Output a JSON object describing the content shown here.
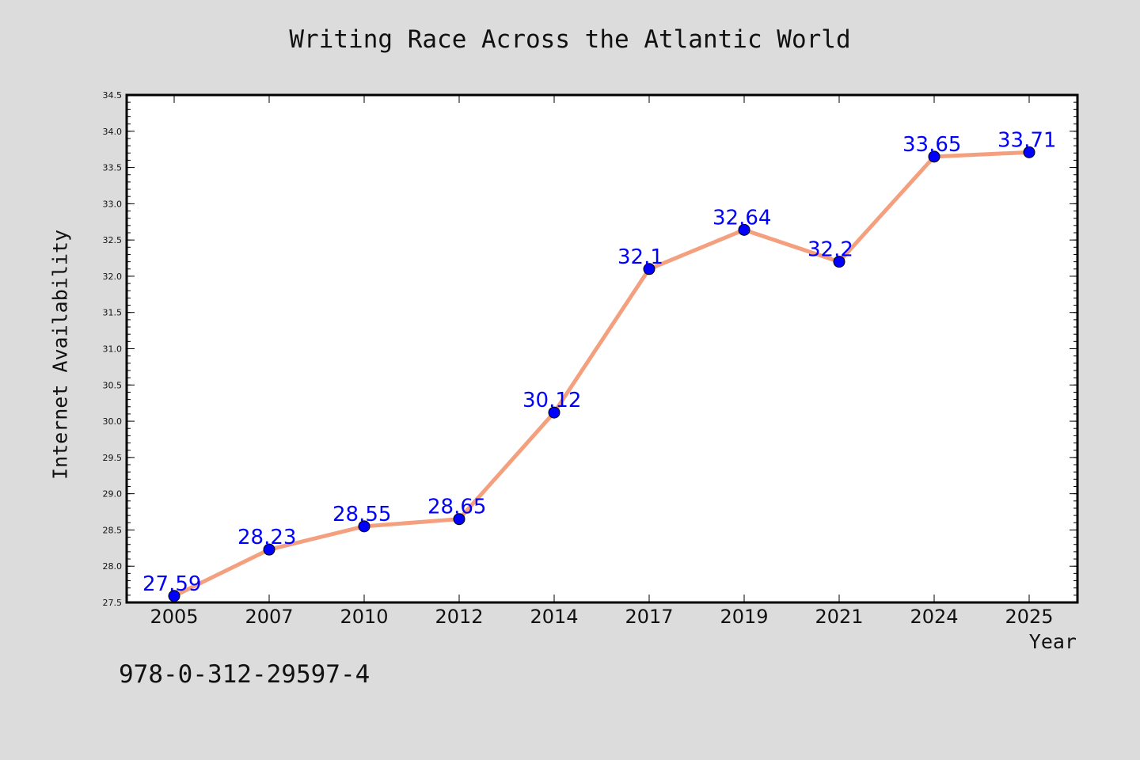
{
  "chart_data": {
    "type": "line",
    "title": "Writing Race Across the Atlantic World",
    "xlabel": "Year",
    "ylabel": "Internet Availability",
    "categories": [
      "2005",
      "2007",
      "2010",
      "2012",
      "2014",
      "2017",
      "2019",
      "2021",
      "2024",
      "2025"
    ],
    "series": [
      {
        "values": [
          27.59,
          28.23,
          28.55,
          28.65,
          30.12,
          32.1,
          32.64,
          32.2,
          33.65,
          33.71
        ]
      }
    ],
    "data_labels": [
      "27.59",
      "28.23",
      "28.55",
      "28.65",
      "30.12",
      "32.1",
      "32.64",
      "32.2",
      "33.65",
      "33.71"
    ],
    "ylim": [
      27.5,
      34.5
    ],
    "yticks": [
      "27.5",
      "28.0",
      "28.5",
      "29.0",
      "29.5",
      "30.0",
      "30.5",
      "31.0",
      "31.5",
      "32.0",
      "32.5",
      "33.0",
      "33.5",
      "34.0",
      "34.5"
    ],
    "grid": false,
    "line_color": "#f4a07f",
    "marker_color": "#0000ff",
    "label_color": "#0000ff"
  },
  "footer": {
    "code": "978-0-312-29597-4"
  }
}
